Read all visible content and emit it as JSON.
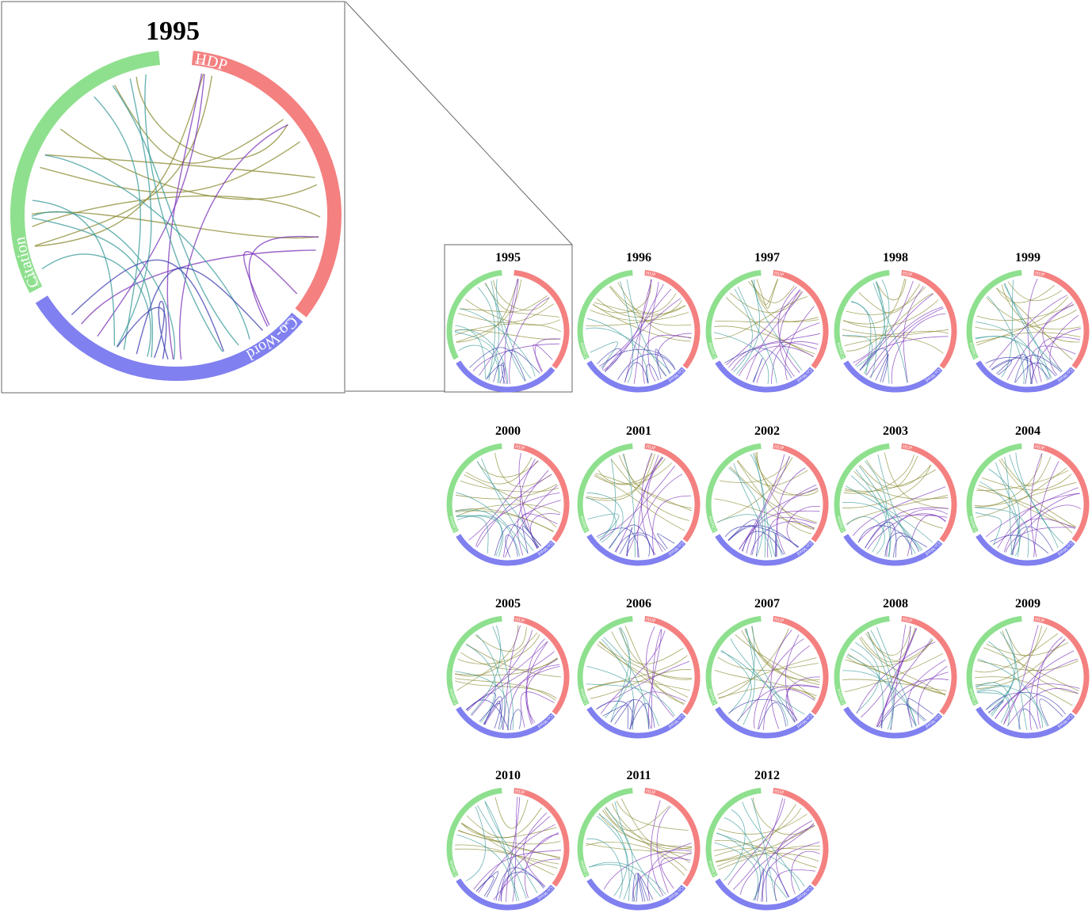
{
  "zoomed_panel": {
    "year": "1995",
    "groups": [
      {
        "name": "HDP",
        "color": "#f48080"
      },
      {
        "name": "Co-Word",
        "color": "#8080f0"
      },
      {
        "name": "Citation",
        "color": "#8ee08e"
      }
    ]
  },
  "panels": [
    {
      "year": "1995"
    },
    {
      "year": "1996"
    },
    {
      "year": "1997"
    },
    {
      "year": "1998"
    },
    {
      "year": "1999"
    },
    {
      "year": "2000"
    },
    {
      "year": "2001"
    },
    {
      "year": "2002"
    },
    {
      "year": "2003"
    },
    {
      "year": "2004"
    },
    {
      "year": "2005"
    },
    {
      "year": "2006"
    },
    {
      "year": "2007"
    },
    {
      "year": "2008"
    },
    {
      "year": "2009"
    },
    {
      "year": "2010"
    },
    {
      "year": "2011"
    },
    {
      "year": "2012"
    }
  ],
  "link_colors": {
    "citation_hdp": "#8a8a30",
    "hdp_coword": "#7a30b8",
    "citation_coword": "#3a9a9a",
    "coword_coword": "#3a3ab0"
  }
}
